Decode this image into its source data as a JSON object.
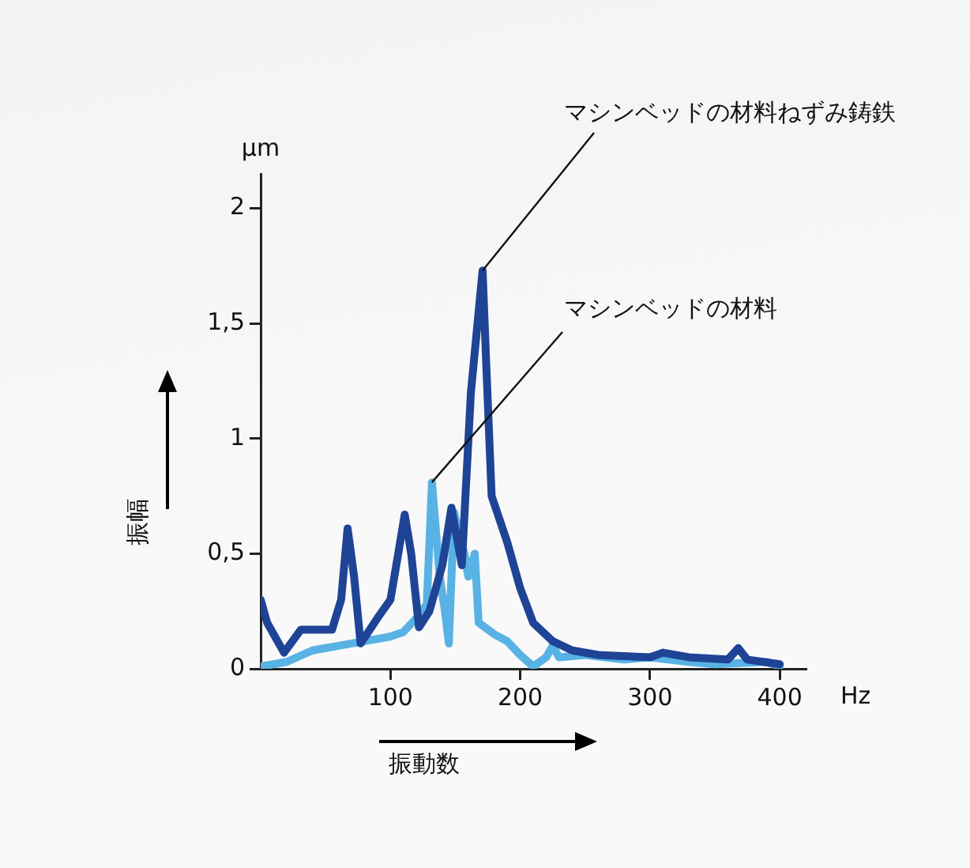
{
  "chart_data": {
    "type": "line",
    "xlabel": "振動数",
    "ylabel": "振幅",
    "annotations": [
      "µm",
      "Hz",
      {
        "text": "マシンベッドの材料ねずみ鋳鉄",
        "x": 171,
        "y": 1.73
      },
      {
        "text": "マシンベッドの材料",
        "x": 132,
        "y": 0.81
      }
    ],
    "xlim": [
      0,
      420
    ],
    "xticks": [
      100,
      200,
      300,
      400
    ],
    "ylim": [
      0,
      2.15
    ],
    "yticks": [
      0,
      {
        "value": 0.5,
        "label": "0,5"
      },
      1,
      {
        "value": 1.5,
        "label": "1,5"
      },
      2
    ],
    "grid": false,
    "legend": false,
    "marker": "none",
    "line_style": "solid",
    "series": [
      {
        "color": "#1f4496",
        "x": [
          0,
          5,
          18,
          31,
          55,
          62,
          67,
          72,
          77,
          90,
          100,
          106,
          111,
          116,
          122,
          130,
          140,
          147,
          155,
          162,
          171,
          174,
          178,
          190,
          200,
          210,
          225,
          240,
          260,
          300,
          310,
          330,
          360,
          368,
          375,
          400
        ],
        "values": [
          0.3,
          0.2,
          0.07,
          0.17,
          0.17,
          0.3,
          0.61,
          0.4,
          0.11,
          0.22,
          0.3,
          0.5,
          0.67,
          0.5,
          0.18,
          0.25,
          0.45,
          0.7,
          0.45,
          1.2,
          1.73,
          1.3,
          0.75,
          0.55,
          0.35,
          0.2,
          0.12,
          0.08,
          0.06,
          0.05,
          0.07,
          0.05,
          0.04,
          0.09,
          0.04,
          0.02
        ]
      },
      {
        "color": "#58b2e3",
        "x": [
          0,
          20,
          40,
          60,
          80,
          100,
          110,
          120,
          128,
          132,
          138,
          142,
          145,
          149,
          157,
          160,
          165,
          168,
          180,
          190,
          200,
          210,
          220,
          225,
          230,
          250,
          280,
          300,
          330,
          350,
          390,
          400
        ],
        "values": [
          0.01,
          0.03,
          0.08,
          0.1,
          0.12,
          0.14,
          0.16,
          0.22,
          0.28,
          0.81,
          0.4,
          0.25,
          0.11,
          0.68,
          0.5,
          0.4,
          0.5,
          0.2,
          0.15,
          0.12,
          0.06,
          0.01,
          0.05,
          0.1,
          0.05,
          0.06,
          0.04,
          0.05,
          0.03,
          0.02,
          0.03,
          0.01
        ]
      }
    ]
  }
}
